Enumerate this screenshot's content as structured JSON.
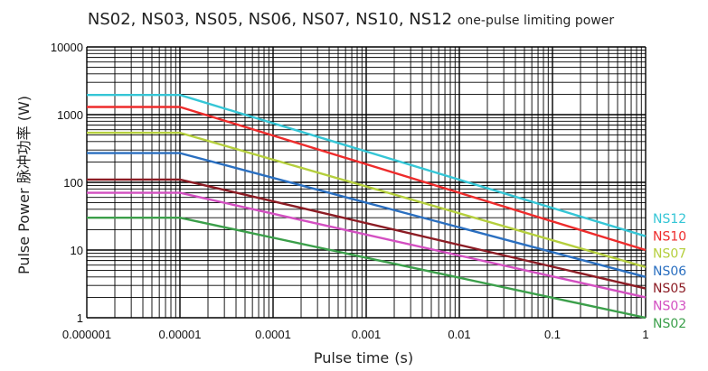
{
  "chart_data": {
    "type": "line",
    "title": "NS02, NS03, NS05, NS06, NS07, NS10, NS12",
    "title_suffix": "one-pulse limiting power",
    "xlabel": "Pulse time",
    "xlabel_unit": "(s)",
    "ylabel": "Pulse Power 脉冲功率 (W)",
    "x_scale": "log",
    "y_scale": "log",
    "xlim": [
      1e-06,
      1
    ],
    "ylim": [
      1,
      10000
    ],
    "x_ticks": [
      "0.000001",
      "0.00001",
      "0.0001",
      "0.001",
      "0.01",
      "0.1",
      "1"
    ],
    "y_ticks": [
      "1",
      "10",
      "100",
      "1000",
      "10000"
    ],
    "grid": true,
    "legend_position": "right",
    "series": [
      {
        "name": "NS12",
        "color": "#35c6d6",
        "x": [
          1e-06,
          1e-05,
          1
        ],
        "y": [
          1950,
          1950,
          16
        ]
      },
      {
        "name": "NS10",
        "color": "#ee2b2b",
        "x": [
          1e-06,
          1e-05,
          1
        ],
        "y": [
          1300,
          1300,
          10
        ]
      },
      {
        "name": "NS07",
        "color": "#b5cf3d",
        "x": [
          1e-06,
          1e-05,
          1
        ],
        "y": [
          540,
          540,
          5.6
        ]
      },
      {
        "name": "NS06",
        "color": "#2a6fc0",
        "x": [
          1e-06,
          1e-05,
          1
        ],
        "y": [
          270,
          270,
          4
        ]
      },
      {
        "name": "NS05",
        "color": "#8c1c24",
        "x": [
          1e-06,
          1e-05,
          1
        ],
        "y": [
          110,
          110,
          2.7
        ]
      },
      {
        "name": "NS03",
        "color": "#d34fc1",
        "x": [
          1e-06,
          1e-05,
          1
        ],
        "y": [
          70,
          70,
          2
        ]
      },
      {
        "name": "NS02",
        "color": "#3b9f4a",
        "x": [
          1e-06,
          1e-05,
          1
        ],
        "y": [
          30,
          30,
          1
        ]
      }
    ]
  }
}
